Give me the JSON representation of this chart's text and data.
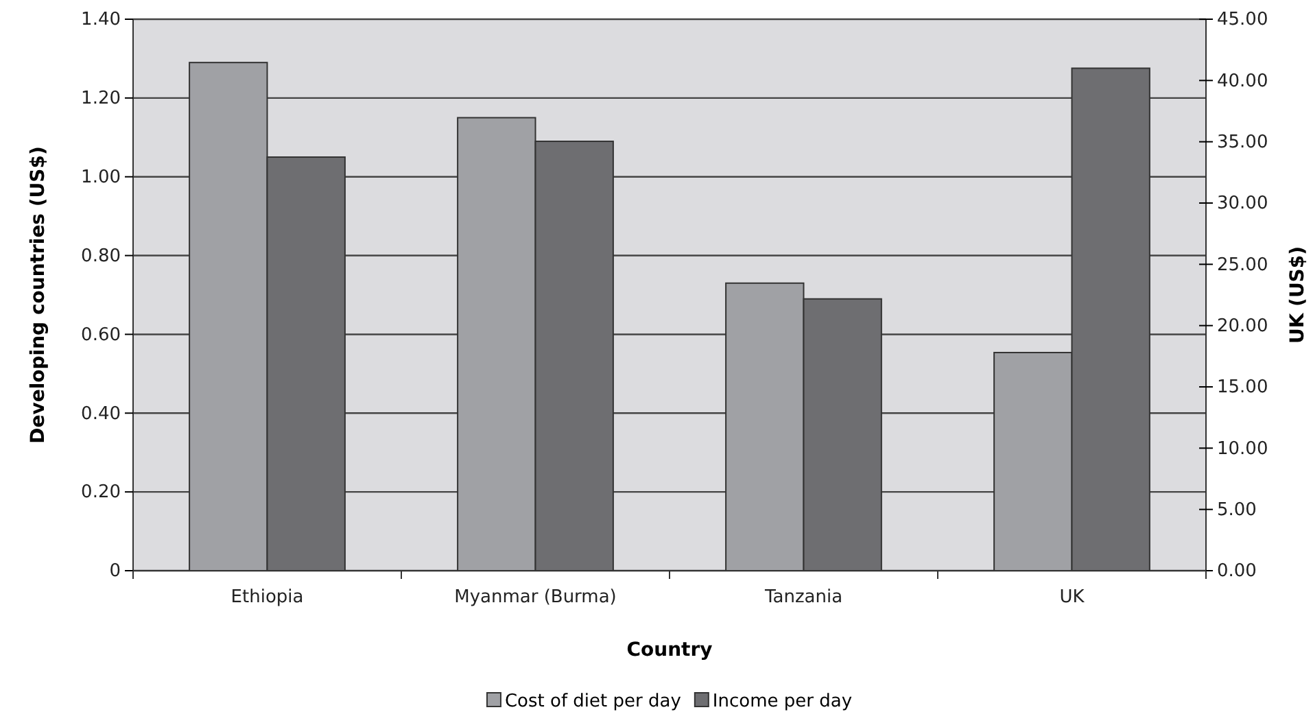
{
  "chart_data": {
    "type": "bar",
    "xlabel": "Country",
    "ylabel": "Developing countries (US$)",
    "y2label": "UK (US$)",
    "categories": [
      "Ethiopia",
      "Myanmar (Burma)",
      "Tanzania",
      "UK"
    ],
    "series": [
      {
        "name": "Cost of diet per day",
        "color": "#a0a1a5",
        "values": [
          1.29,
          1.15,
          0.73,
          null
        ]
      },
      {
        "name": "Income per day",
        "color": "#6e6e71",
        "values": [
          1.05,
          1.09,
          0.69,
          null
        ]
      },
      {
        "color": "#a0a1a5",
        "values": [
          null,
          null,
          null,
          17.8
        ],
        "axis": "y2"
      },
      {
        "color": "#6e6e71",
        "values": [
          null,
          null,
          null,
          41.0
        ],
        "axis": "y2"
      }
    ],
    "ylim": [
      0,
      1.4
    ],
    "yticks": [
      0,
      {
        "value": 0.2,
        "label": "0.20"
      },
      {
        "value": 0.4,
        "label": "0.40"
      },
      {
        "value": 0.6,
        "label": "0.60"
      },
      {
        "value": 0.8,
        "label": "0.80"
      },
      {
        "value": 1.0,
        "label": "1.00"
      },
      {
        "value": 1.2,
        "label": "1.20"
      },
      {
        "value": 1.4,
        "label": "1.40"
      }
    ],
    "y2lim": [
      0,
      45
    ],
    "y2ticks": [
      {
        "value": 0,
        "label": "0.00"
      },
      {
        "value": 5,
        "label": "5.00"
      },
      {
        "value": 10,
        "label": "10.00"
      },
      {
        "value": 15,
        "label": "15.00"
      },
      {
        "value": 20,
        "label": "20.00"
      },
      {
        "value": 25,
        "label": "25.00"
      },
      {
        "value": 30,
        "label": "30.00"
      },
      {
        "value": 35,
        "label": "35.00"
      },
      {
        "value": 40,
        "label": "40.00"
      },
      {
        "value": 45,
        "label": "45.00"
      }
    ],
    "grid": "y",
    "legend": "bottom"
  }
}
